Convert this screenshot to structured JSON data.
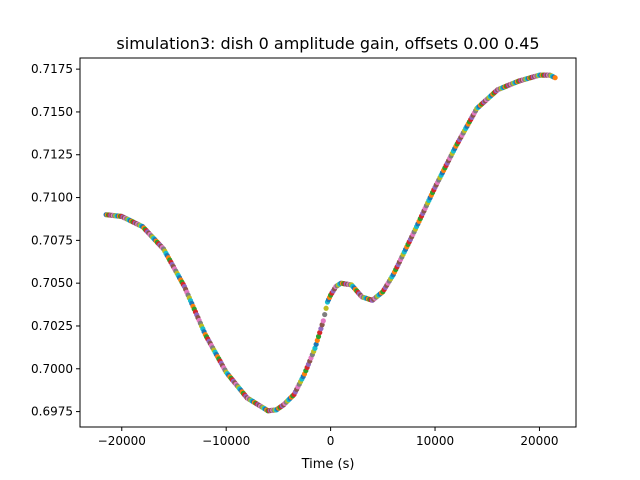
{
  "chart_data": {
    "type": "scatter",
    "title": "simulation3: dish 0 amplitude gain, offsets 0.00 0.45",
    "xlabel": "Time (s)",
    "ylabel": "",
    "xlim": [
      -24000,
      23500
    ],
    "ylim": [
      0.6966,
      0.71815
    ],
    "x_ticks": [
      -20000,
      -10000,
      0,
      10000,
      20000
    ],
    "x_tick_labels": [
      "−20000",
      "−10000",
      "0",
      "10000",
      "20000"
    ],
    "y_ticks": [
      0.6975,
      0.7,
      0.7025,
      0.705,
      0.7075,
      0.71,
      0.7125,
      0.715,
      0.7175
    ],
    "y_tick_labels": [
      "0.6975",
      "0.7000",
      "0.7025",
      "0.7050",
      "0.7075",
      "0.7100",
      "0.7125",
      "0.7150",
      "0.7175"
    ],
    "grid": false,
    "legend": "none",
    "marker_colors": [
      "#1f77b4",
      "#ff7f0e",
      "#2ca02c",
      "#d62728",
      "#9467bd",
      "#8c564b",
      "#e377c2",
      "#7f7f7f",
      "#bcbd22",
      "#17becf"
    ],
    "x": [
      -21500,
      -20000,
      -18000,
      -16000,
      -14000,
      -12000,
      -10000,
      -8000,
      -6000,
      -5200,
      -4500,
      -3500,
      -2500,
      -1500,
      -700,
      -300,
      0,
      500,
      1000,
      2000,
      3000,
      4000,
      5000,
      6000,
      8000,
      10000,
      12000,
      14000,
      16000,
      18000,
      20000,
      21000,
      21500
    ],
    "y": [
      0.709,
      0.7089,
      0.7083,
      0.707,
      0.7048,
      0.702,
      0.6998,
      0.6983,
      0.69755,
      0.6976,
      0.6979,
      0.6985,
      0.6997,
      0.7012,
      0.7028,
      0.7039,
      0.7043,
      0.7048,
      0.705,
      0.7049,
      0.7042,
      0.704,
      0.7045,
      0.7055,
      0.708,
      0.7106,
      0.713,
      0.7152,
      0.7163,
      0.7168,
      0.71715,
      0.71715,
      0.717
    ]
  }
}
